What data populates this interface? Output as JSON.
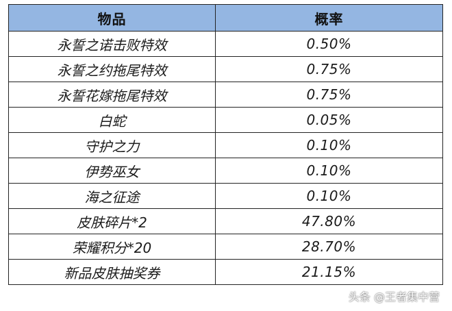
{
  "table": {
    "headers": {
      "item": "物品",
      "probability": "概率"
    },
    "rows": [
      {
        "item": "永誓之诺击败特效",
        "probability": "0.50%"
      },
      {
        "item": "永誓之约拖尾特效",
        "probability": "0.75%"
      },
      {
        "item": "永誓花嫁拖尾特效",
        "probability": "0.75%"
      },
      {
        "item": "白蛇",
        "probability": "0.05%"
      },
      {
        "item": "守护之力",
        "probability": "0.10%"
      },
      {
        "item": "伊势巫女",
        "probability": "0.10%"
      },
      {
        "item": "海之征途",
        "probability": "0.10%"
      },
      {
        "item": "皮肤碎片*2",
        "probability": "47.80%"
      },
      {
        "item": "荣耀积分*20",
        "probability": "28.70%"
      },
      {
        "item": "新品皮肤抽奖券",
        "probability": "21.15%"
      }
    ]
  },
  "watermark": "头条 @王者集中营",
  "colors": {
    "header_bg": "#94b6e2",
    "border": "#222222",
    "text": "#1a1a1a"
  }
}
